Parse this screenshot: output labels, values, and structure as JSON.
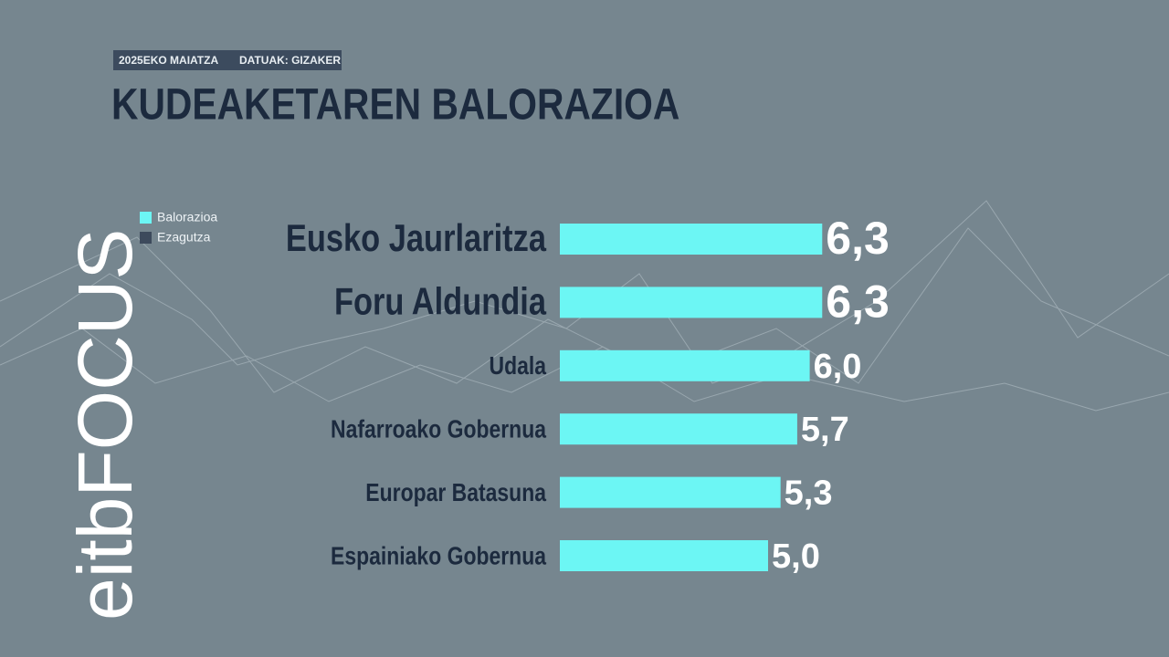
{
  "header": {
    "date": "2025EKO MAIATZA",
    "source": "DATUAK: GIZAKER"
  },
  "logo": "eitbFOCUS",
  "chart_data": {
    "type": "bar",
    "orientation": "horizontal",
    "title": "KUDEAKETAREN BALORAZIOA",
    "categories": [
      "Eusko Jaurlaritza",
      "Foru Aldundia",
      "Udala",
      "Nafarroako Gobernua",
      "Europar Batasuna",
      "Espainiako Gobernua"
    ],
    "series": [
      {
        "name": "Balorazioa",
        "color": "#6cf6f4",
        "values": [
          6.3,
          6.3,
          6.0,
          5.7,
          5.3,
          5.0
        ],
        "value_labels": [
          "6,3",
          "6,3",
          "6,0",
          "5,7",
          "5,3",
          "5,0"
        ]
      },
      {
        "name": "Ezagutza",
        "color": "#3d4a5c",
        "values": [
          null,
          null,
          null,
          null,
          null,
          null
        ]
      }
    ],
    "legend": "top-left",
    "grid": false
  }
}
